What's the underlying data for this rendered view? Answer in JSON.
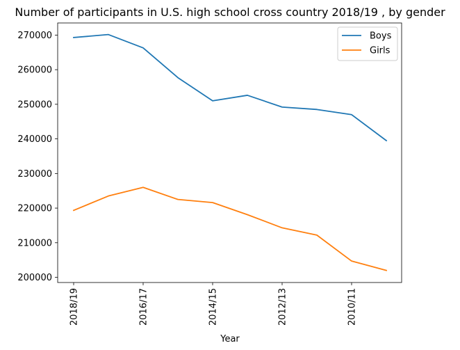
{
  "chart_data": {
    "type": "line",
    "title": "Number of participants in U.S. high school cross country 2018/19 , by gender",
    "xlabel": "Year",
    "ylabel": "",
    "x": [
      "2018/19",
      "2017/18",
      "2016/17",
      "2015/16",
      "2014/15",
      "2013/14",
      "2012/13",
      "2011/12",
      "2010/11",
      "2009/10"
    ],
    "xtick_labels": [
      "2018/19",
      "2016/17",
      "2014/15",
      "2012/13",
      "2010/11"
    ],
    "ylim": [
      198500,
      273500
    ],
    "yticks": [
      200000,
      210000,
      220000,
      230000,
      240000,
      250000,
      260000,
      270000
    ],
    "ytick_labels": [
      "200000",
      "210000",
      "220000",
      "230000",
      "240000",
      "250000",
      "260000",
      "270000"
    ],
    "series": [
      {
        "name": "Boys",
        "color": "#1f77b4",
        "values": [
          269295,
          270150,
          266300,
          257700,
          251000,
          252600,
          249200,
          248500,
          247000,
          239500
        ]
      },
      {
        "name": "Girls",
        "color": "#ff7f0e",
        "values": [
          219345,
          223500,
          226000,
          222500,
          221600,
          218100,
          214300,
          212200,
          204700,
          202000
        ]
      }
    ],
    "grid": false,
    "legend_position": "top-right"
  }
}
